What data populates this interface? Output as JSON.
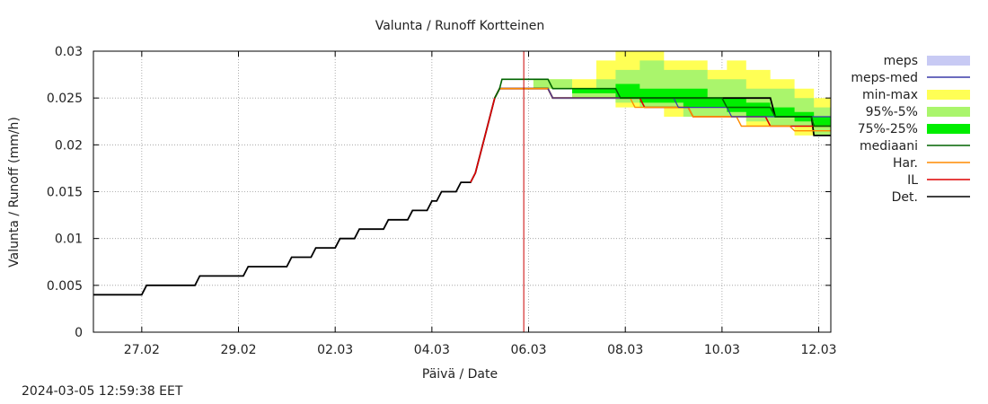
{
  "chart_data": {
    "type": "line",
    "title": "Valunta / Runoff  Kortteinen",
    "xlabel": "Päivä / Date",
    "ylabel": "Valunta / Runoff (mm/h)",
    "ylim": [
      0,
      0.03
    ],
    "xlim": [
      -0.5,
      14.75
    ],
    "yticks": [
      0,
      0.005,
      0.01,
      0.015,
      0.02,
      0.025,
      0.03
    ],
    "ytick_labels": [
      "0",
      "0.005",
      "0.01",
      "0.015",
      "0.02",
      "0.025",
      "0.03"
    ],
    "xticks": [
      0.5,
      2.5,
      4.5,
      6.5,
      8.5,
      10.5,
      12.5,
      14.5
    ],
    "xtick_labels": [
      "27.02",
      "29.02",
      "02.03",
      "04.03",
      "06.03",
      "08.03",
      "10.03",
      "12.03"
    ],
    "grid": true,
    "now_line_x": 8.4,
    "legend_position": "right",
    "legend": [
      {
        "label": "meps",
        "kind": "band",
        "color": "#c8caf4"
      },
      {
        "label": "meps-med",
        "kind": "line",
        "color": "#3a3aa8"
      },
      {
        "label": "min-max",
        "kind": "band",
        "color": "#ffff55"
      },
      {
        "label": "95%-5%",
        "kind": "band",
        "color": "#aaf56c"
      },
      {
        "label": "75%-25%",
        "kind": "band",
        "color": "#00ee00"
      },
      {
        "label": "mediaani",
        "kind": "line",
        "color": "#006400"
      },
      {
        "label": "Har.",
        "kind": "line",
        "color": "#ff8c00"
      },
      {
        "label": "IL",
        "kind": "line",
        "color": "#dd0000"
      },
      {
        "label": "Det.",
        "kind": "line",
        "color": "#000000"
      }
    ],
    "bands": [
      {
        "name": "min-max",
        "color": "#ffff55",
        "x": [
          8.6,
          9.2,
          9.4,
          9.9,
          10.3,
          10.8,
          11.3,
          11.7,
          12.2,
          12.6,
          13.0,
          13.5,
          14.0,
          14.4,
          14.75
        ],
        "lower": [
          0.026,
          0.026,
          0.025,
          0.025,
          0.024,
          0.024,
          0.023,
          0.023,
          0.023,
          0.023,
          0.022,
          0.022,
          0.021,
          0.021,
          0.021
        ],
        "upper": [
          0.027,
          0.027,
          0.027,
          0.029,
          0.03,
          0.03,
          0.029,
          0.029,
          0.028,
          0.029,
          0.028,
          0.027,
          0.026,
          0.025,
          0.025
        ]
      },
      {
        "name": "95%-5%",
        "color": "#aaf56c",
        "x": [
          8.6,
          9.2,
          9.4,
          9.9,
          10.3,
          10.8,
          11.3,
          11.7,
          12.2,
          12.6,
          13.0,
          13.5,
          14.0,
          14.4,
          14.75
        ],
        "lower": [
          0.026,
          0.026,
          0.025,
          0.025,
          0.0245,
          0.024,
          0.024,
          0.023,
          0.023,
          0.023,
          0.0225,
          0.022,
          0.022,
          0.021,
          0.021
        ],
        "upper": [
          0.027,
          0.027,
          0.026,
          0.027,
          0.028,
          0.029,
          0.028,
          0.028,
          0.027,
          0.027,
          0.026,
          0.026,
          0.025,
          0.024,
          0.024
        ]
      },
      {
        "name": "75%-25%",
        "color": "#00ee00",
        "x": [
          8.6,
          9.2,
          9.4,
          9.9,
          10.3,
          10.8,
          11.3,
          11.7,
          12.2,
          12.6,
          13.0,
          13.5,
          14.0,
          14.4,
          14.75
        ],
        "lower": [
          0.026,
          0.026,
          0.0255,
          0.0255,
          0.025,
          0.0245,
          0.0245,
          0.024,
          0.024,
          0.0235,
          0.023,
          0.023,
          0.0225,
          0.022,
          0.022
        ],
        "upper": [
          0.026,
          0.026,
          0.026,
          0.026,
          0.0265,
          0.026,
          0.026,
          0.026,
          0.025,
          0.025,
          0.0245,
          0.024,
          0.0235,
          0.023,
          0.023
        ]
      }
    ],
    "series": [
      {
        "name": "Det.",
        "color": "#000000",
        "width": 1.8,
        "x": [
          -0.5,
          0.5,
          0.6,
          1.6,
          1.7,
          2.6,
          2.7,
          3.5,
          3.6,
          4.0,
          4.1,
          4.5,
          4.6,
          4.9,
          5.0,
          5.5,
          5.6,
          6.0,
          6.1,
          6.4,
          6.5,
          6.6,
          6.7,
          7.0,
          7.1,
          7.3,
          7.4,
          7.6,
          7.8,
          7.9,
          8.3,
          8.9,
          9.0,
          13.5,
          13.6,
          14.35,
          14.4,
          14.75
        ],
        "y": [
          0.004,
          0.004,
          0.005,
          0.005,
          0.006,
          0.006,
          0.007,
          0.007,
          0.008,
          0.008,
          0.009,
          0.009,
          0.01,
          0.01,
          0.011,
          0.011,
          0.012,
          0.012,
          0.013,
          0.013,
          0.014,
          0.014,
          0.015,
          0.015,
          0.016,
          0.016,
          0.017,
          0.021,
          0.025,
          0.026,
          0.026,
          0.026,
          0.025,
          0.025,
          0.023,
          0.023,
          0.021,
          0.021
        ]
      },
      {
        "name": "IL",
        "color": "#dd0000",
        "width": 1.6,
        "x": [
          7.3,
          7.4,
          7.6,
          7.8,
          7.9,
          8.3,
          8.9,
          9.0,
          9.2,
          9.3,
          9.8,
          10.8,
          10.9,
          11.8,
          11.9,
          12.8,
          12.9,
          13.4,
          13.5,
          14.0,
          14.1,
          14.75
        ],
        "y": [
          0.016,
          0.017,
          0.021,
          0.025,
          0.026,
          0.026,
          0.026,
          0.025,
          0.025,
          0.025,
          0.025,
          0.025,
          0.024,
          0.024,
          0.023,
          0.023,
          0.023,
          0.023,
          0.022,
          0.022,
          0.022,
          0.022
        ]
      },
      {
        "name": "Har.",
        "color": "#ff8c00",
        "width": 1.4,
        "x": [
          7.8,
          7.9,
          8.3,
          8.9,
          9.0,
          10.6,
          10.7,
          11.8,
          11.9,
          12.8,
          12.9,
          13.9,
          14.0,
          14.75
        ],
        "y": [
          0.025,
          0.026,
          0.026,
          0.026,
          0.025,
          0.025,
          0.024,
          0.024,
          0.023,
          0.023,
          0.022,
          0.022,
          0.0215,
          0.0215
        ]
      },
      {
        "name": "meps-med",
        "color": "#3a3aa8",
        "width": 1.2,
        "x": [
          8.9,
          9.0,
          11.5,
          11.6,
          12.6,
          12.7,
          14.75
        ],
        "y": [
          0.026,
          0.025,
          0.025,
          0.024,
          0.024,
          0.023,
          0.023
        ]
      },
      {
        "name": "mediaani",
        "color": "#006400",
        "width": 1.6,
        "x": [
          7.8,
          7.9,
          7.95,
          8.3,
          8.9,
          9.0,
          9.3,
          9.4,
          10.3,
          10.4,
          12.5,
          12.6,
          13.5,
          13.6,
          14.35,
          14.4,
          14.75
        ],
        "y": [
          0.025,
          0.026,
          0.027,
          0.027,
          0.027,
          0.026,
          0.026,
          0.026,
          0.026,
          0.025,
          0.025,
          0.024,
          0.024,
          0.023,
          0.023,
          0.022,
          0.022
        ]
      }
    ]
  },
  "footer": {
    "timestamp": "2024-03-05 12:59:38 EET"
  }
}
